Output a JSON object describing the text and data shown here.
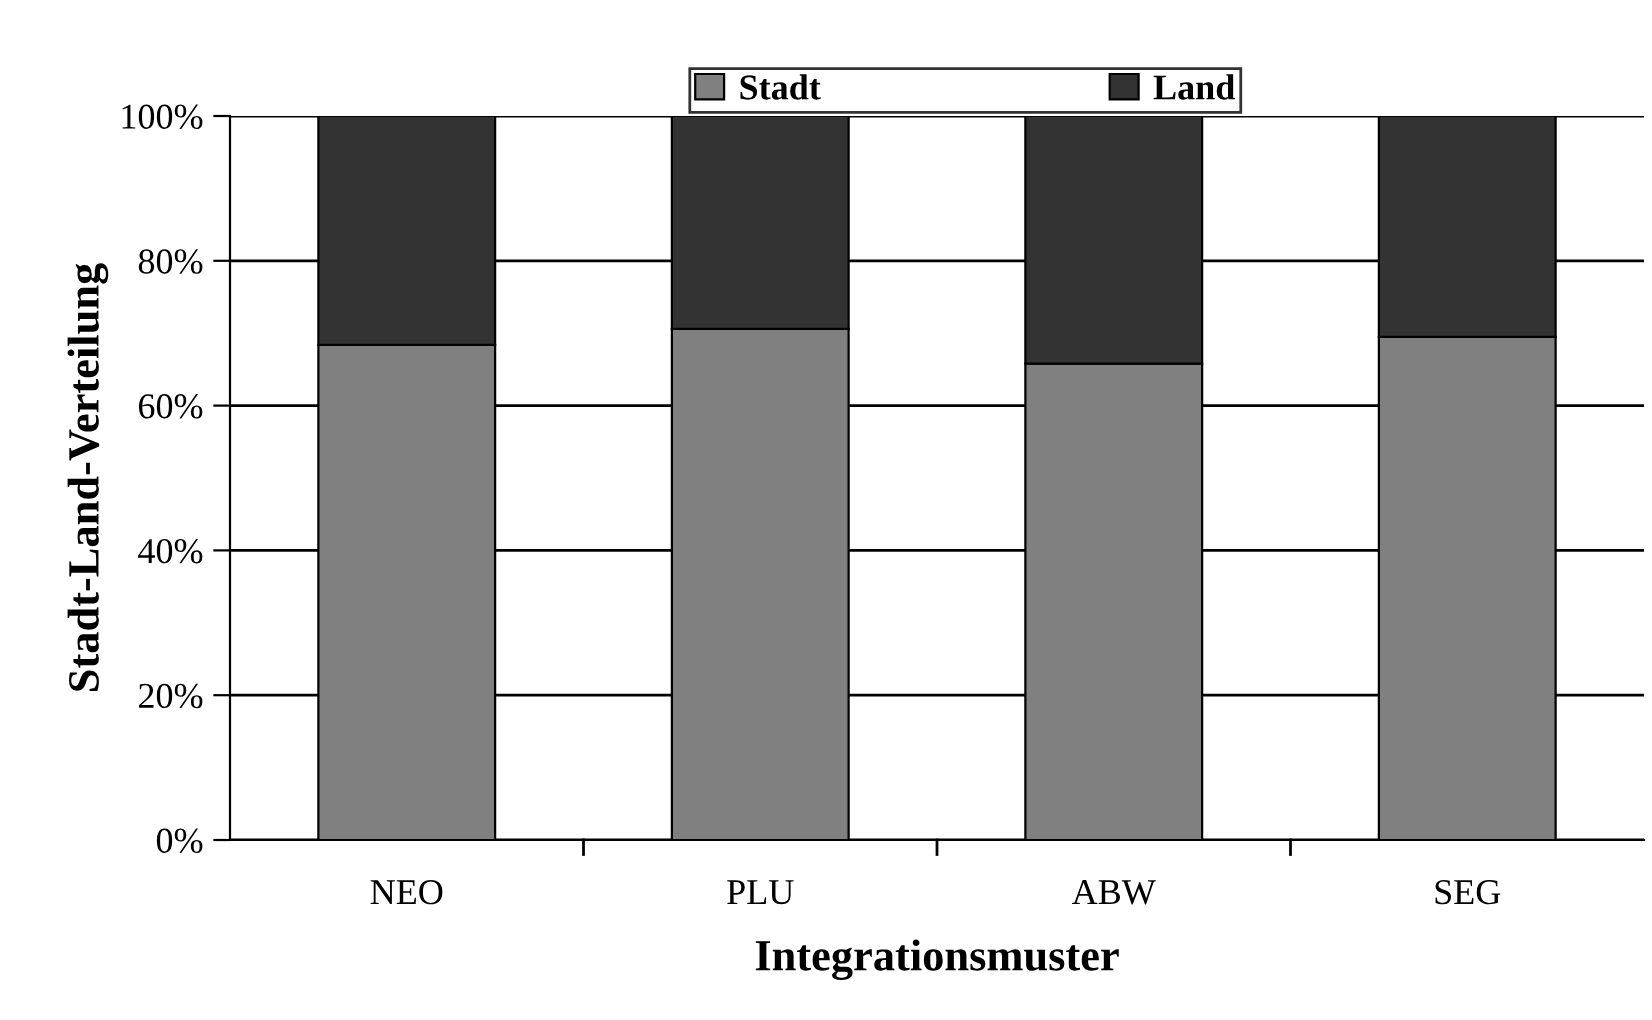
{
  "chart_data": {
    "type": "bar",
    "stacked": true,
    "xlabel": "Integrationsmuster",
    "ylabel": "Stadt-Land-Verteilung",
    "categories": [
      "NEO",
      "PLU",
      "ABW",
      "SEG"
    ],
    "series": [
      {
        "name": "Stadt",
        "color": "#808080",
        "values": [
          68.4,
          70.6,
          65.8,
          69.5
        ]
      },
      {
        "name": "Land",
        "color": "#333333",
        "values": [
          31.6,
          29.4,
          34.2,
          30.5
        ]
      }
    ],
    "ylim": [
      0,
      100
    ],
    "yticks": [
      {
        "value": 0,
        "label": "0%"
      },
      {
        "value": 20,
        "label": "20%"
      },
      {
        "value": 40,
        "label": "40%"
      },
      {
        "value": 60,
        "label": "60%"
      },
      {
        "value": 80,
        "label": "80%"
      },
      {
        "value": 100,
        "label": "100%"
      }
    ],
    "grid": "y",
    "legend": "top"
  }
}
